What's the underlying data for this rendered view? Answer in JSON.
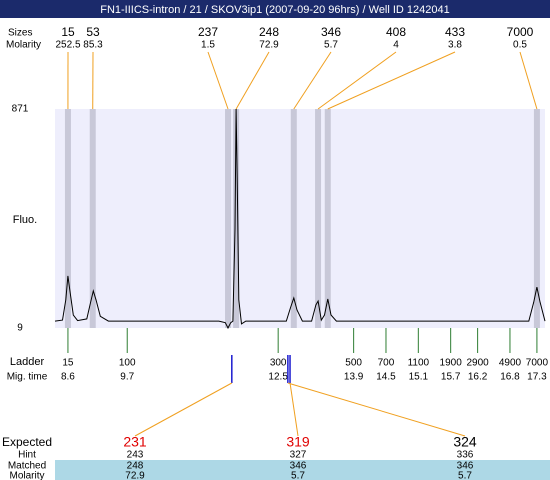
{
  "header": {
    "title": "FN1-IIICS-intron / 21 / SKOV3ip1 (2007-09-20 96hrs) / Well ID 1242041"
  },
  "peaks": {
    "size_label": "Sizes",
    "molarity_label": "Molarity",
    "size": [
      15,
      53,
      237,
      248,
      346,
      408,
      433,
      7000
    ],
    "molarity": [
      252.5,
      85.3,
      1.5,
      72.9,
      5.7,
      4,
      3.8,
      0.5
    ],
    "x": [
      8.6,
      9.06,
      11.57,
      11.72,
      12.79,
      13.24,
      13.42,
      17.3
    ]
  },
  "chart_data": {
    "type": "line",
    "ylabel": "Fluo.",
    "ylim": [
      9,
      871
    ],
    "yticks": [
      9,
      871
    ],
    "xlim": [
      8.36,
      17.45
    ],
    "x": [
      8.36,
      8.5,
      8.56,
      8.6,
      8.64,
      8.7,
      8.78,
      8.95,
      9.02,
      9.07,
      9.12,
      9.2,
      9.35,
      11.4,
      11.52,
      11.57,
      11.62,
      11.66,
      11.7,
      11.72,
      11.74,
      11.77,
      11.82,
      11.9,
      12.65,
      12.73,
      12.79,
      12.85,
      12.95,
      13.12,
      13.2,
      13.24,
      13.3,
      13.36,
      13.42,
      13.48,
      13.58,
      17.15,
      17.24,
      17.3,
      17.36,
      17.45
    ],
    "series": [
      {
        "color": "#000000",
        "values": [
          36,
          40,
          120,
          214,
          150,
          60,
          38,
          45,
          110,
          155,
          120,
          55,
          36,
          36,
          30,
          9,
          30,
          36,
          400,
          871,
          600,
          120,
          25,
          36,
          36,
          90,
          127,
          80,
          36,
          36,
          100,
          115,
          40,
          60,
          123,
          60,
          36,
          36,
          110,
          170,
          110,
          36
        ]
      }
    ]
  },
  "ladder": {
    "label": "Ladder",
    "time_label": "Mig. time",
    "size": [
      15,
      100,
      300,
      500,
      700,
      1100,
      1900,
      2900,
      4900,
      7000
    ],
    "mig_time": [
      8.6,
      9.7,
      12.5,
      13.9,
      14.5,
      15.1,
      15.7,
      16.2,
      16.8,
      17.3
    ]
  },
  "expected": {
    "labels": [
      "Expected",
      "Hint",
      "Matched",
      "Molarity"
    ],
    "size": [
      231,
      319,
      324
    ],
    "hint": [
      243,
      327,
      336
    ],
    "matched": [
      248,
      346,
      346
    ],
    "molarity": [
      72.9,
      5.7,
      5.7
    ],
    "x": [
      11.64,
      12.72,
      12.68
    ]
  }
}
